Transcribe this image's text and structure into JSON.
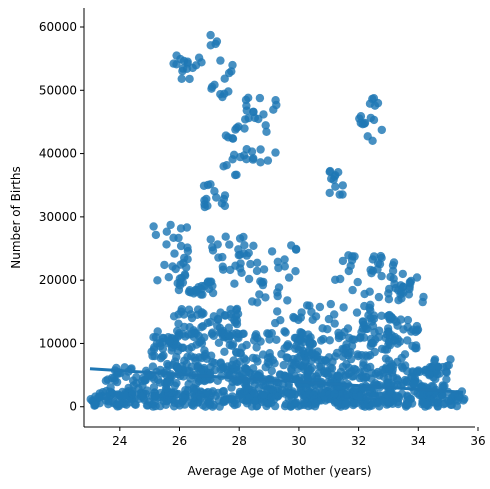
{
  "chart_data": {
    "type": "scatter",
    "title": "",
    "xlabel": "Average Age of Mother (years)",
    "ylabel": "Number of Births",
    "xlim": [
      22.8,
      35.9
    ],
    "ylim": [
      -3200,
      63000
    ],
    "xticks": [
      24,
      26,
      28,
      30,
      32,
      34,
      36
    ],
    "yticks": [
      0,
      10000,
      20000,
      30000,
      40000,
      50000,
      60000
    ],
    "grid": false,
    "legend": "none",
    "color": "#1f77b4",
    "regression_line": {
      "x": [
        23.0,
        35.5
      ],
      "y": [
        6000,
        2300
      ]
    },
    "point_bands": [
      {
        "x": [
          23.0,
          35.6
        ],
        "y": [
          0,
          2500
        ],
        "n": 420
      },
      {
        "x": [
          23.5,
          35.0
        ],
        "y": [
          1500,
          6500
        ],
        "n": 340
      },
      {
        "x": [
          25.0,
          30.5
        ],
        "y": [
          4000,
          12000
        ],
        "n": 220
      },
      {
        "x": [
          30.0,
          34.0
        ],
        "y": [
          3000,
          11000
        ],
        "n": 140
      },
      {
        "x": [
          25.8,
          28.0
        ],
        "y": [
          11000,
          15500
        ],
        "n": 60
      },
      {
        "x": [
          32.0,
          34.0
        ],
        "y": [
          11000,
          14500
        ],
        "n": 40
      }
    ],
    "point_clusters": [
      {
        "x": [
          25.1,
          26.3
        ],
        "y": [
          19000,
          30000
        ],
        "n": 28
      },
      {
        "x": [
          25.9,
          27.2
        ],
        "y": [
          17500,
          20000
        ],
        "n": 24
      },
      {
        "x": [
          27.0,
          28.2
        ],
        "y": [
          21000,
          27000
        ],
        "n": 20
      },
      {
        "x": [
          27.8,
          30.0
        ],
        "y": [
          13000,
          26000
        ],
        "n": 40
      },
      {
        "x": [
          30.0,
          32.5
        ],
        "y": [
          10000,
          16500
        ],
        "n": 34
      },
      {
        "x": [
          31.2,
          33.5
        ],
        "y": [
          17000,
          24000
        ],
        "n": 34
      },
      {
        "x": [
          33.0,
          34.2
        ],
        "y": [
          16500,
          21500
        ],
        "n": 20
      },
      {
        "x": [
          31.0,
          31.5
        ],
        "y": [
          33500,
          38500
        ],
        "n": 12
      },
      {
        "x": [
          32.0,
          32.8
        ],
        "y": [
          42000,
          48800
        ],
        "n": 16
      },
      {
        "x": [
          25.7,
          26.8
        ],
        "y": [
          51500,
          55500
        ],
        "n": 16
      },
      {
        "x": [
          26.9,
          27.8
        ],
        "y": [
          48800,
          60000
        ],
        "n": 16
      },
      {
        "x": [
          27.2,
          28.5
        ],
        "y": [
          36500,
          44500
        ],
        "n": 20
      },
      {
        "x": [
          28.2,
          29.3
        ],
        "y": [
          37500,
          49500
        ],
        "n": 22
      },
      {
        "x": [
          26.8,
          27.6
        ],
        "y": [
          31500,
          35500
        ],
        "n": 14
      },
      {
        "x": [
          34.3,
          35.2
        ],
        "y": [
          6000,
          7500
        ],
        "n": 10
      }
    ]
  }
}
